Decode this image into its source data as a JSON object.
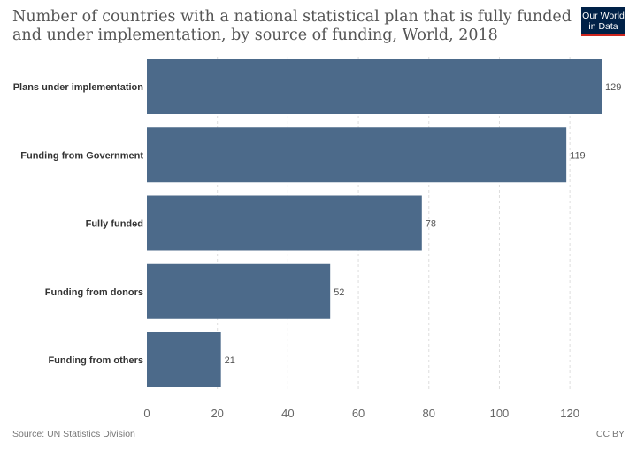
{
  "chart_data": {
    "type": "bar",
    "orientation": "horizontal",
    "title": "Number of countries with a national statistical plan that is fully funded and under implementation, by source of funding, World, 2018",
    "categories": [
      "Plans under implementation",
      "Funding from Government",
      "Fully funded",
      "Funding from donors",
      "Funding from others"
    ],
    "values": [
      129,
      119,
      78,
      52,
      21
    ],
    "xlim": [
      0,
      129
    ],
    "xticks": [
      0,
      20,
      40,
      60,
      80,
      100,
      120
    ],
    "grid": true,
    "bar_color": "#4c6a8a"
  },
  "logo": {
    "line1": "Our World",
    "line2": "in Data"
  },
  "footer": {
    "source": "Source: UN Statistics Division",
    "license": "CC BY"
  }
}
